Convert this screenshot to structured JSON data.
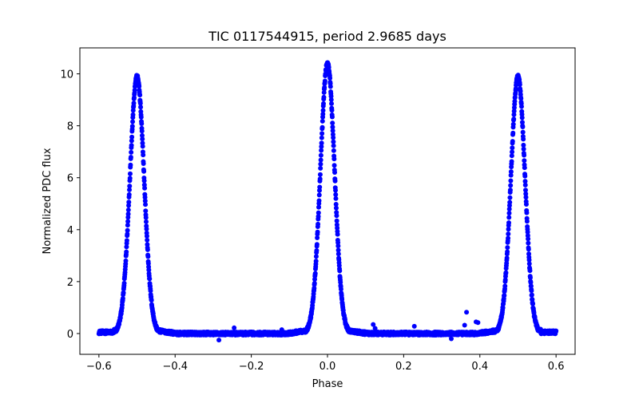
{
  "chart_data": {
    "type": "scatter",
    "title": "TIC 0117544915, period 2.9685 days",
    "xlabel": "Phase",
    "ylabel": "Normalized PDC flux",
    "xlim": [
      -0.65,
      0.65
    ],
    "ylim": [
      -0.8,
      11.0
    ],
    "xticks": [
      -0.6,
      -0.4,
      -0.2,
      0.0,
      0.2,
      0.4,
      0.6
    ],
    "xtick_labels": [
      "−0.6",
      "−0.4",
      "−0.2",
      "0.0",
      "0.2",
      "0.4",
      "0.6"
    ],
    "yticks": [
      0,
      2,
      4,
      6,
      8,
      10
    ],
    "ytick_labels": [
      "0",
      "2",
      "4",
      "6",
      "8",
      "10"
    ],
    "grid": false,
    "marker_color": "#0000ff",
    "peaks": [
      {
        "phase": -0.5,
        "flux": 9.9
      },
      {
        "phase": 0.0,
        "flux": 10.4
      },
      {
        "phase": 0.5,
        "flux": 9.9
      }
    ],
    "outliers": [
      {
        "x": -0.285,
        "y": -0.25
      },
      {
        "x": -0.245,
        "y": 0.22
      },
      {
        "x": -0.12,
        "y": 0.15
      },
      {
        "x": 0.12,
        "y": 0.35
      },
      {
        "x": 0.125,
        "y": 0.2
      },
      {
        "x": 0.2,
        "y": 0.05
      },
      {
        "x": 0.228,
        "y": 0.28
      },
      {
        "x": 0.25,
        "y": 0.02
      },
      {
        "x": 0.325,
        "y": -0.2
      },
      {
        "x": 0.36,
        "y": 0.32
      },
      {
        "x": 0.365,
        "y": 0.82
      },
      {
        "x": 0.39,
        "y": 0.45
      },
      {
        "x": 0.395,
        "y": 0.42
      }
    ]
  }
}
